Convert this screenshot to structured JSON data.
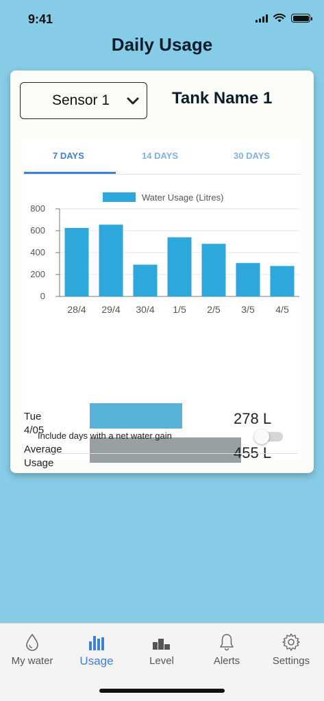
{
  "status_bar": {
    "time": "9:41"
  },
  "page_title": "Daily Usage",
  "sensor_select": {
    "value": "Sensor 1"
  },
  "tank_name": "Tank Name 1",
  "tabs": [
    {
      "label": "7 DAYS",
      "active": true
    },
    {
      "label": "14 DAYS",
      "active": false
    },
    {
      "label": "30 DAYS",
      "active": false
    }
  ],
  "chart_data": {
    "type": "bar",
    "legend": "Water Usage (Litres)",
    "categories": [
      "28/4",
      "29/4",
      "30/4",
      "1/5",
      "2/5",
      "3/5",
      "4/5"
    ],
    "values": [
      625,
      655,
      290,
      540,
      480,
      305,
      278
    ],
    "yticks": [
      "0",
      "200",
      "400",
      "600",
      "800"
    ],
    "ylim": [
      0,
      800
    ],
    "color": "#2ea7db",
    "grid": true
  },
  "comparison": {
    "today_label_line1": "Tue",
    "today_label_line2": "4/05",
    "today_value": "278 L",
    "today_litres": 278,
    "avg_label_line1": "Average",
    "avg_label_line2": "Usage",
    "avg_value": "455 L",
    "avg_litres": 455
  },
  "net_gain_toggle": {
    "label": "Include days with a net water gain",
    "on": false
  },
  "bottom_nav": [
    {
      "label": "My water",
      "icon": "water-drop-icon",
      "active": false
    },
    {
      "label": "Usage",
      "icon": "bar-chart-icon",
      "active": true
    },
    {
      "label": "Level",
      "icon": "level-icon",
      "active": false
    },
    {
      "label": "Alerts",
      "icon": "bell-icon",
      "active": false
    },
    {
      "label": "Settings",
      "icon": "gear-icon",
      "active": false
    }
  ],
  "colors": {
    "background": "#87cce6",
    "accent": "#3f7fd4",
    "bar": "#2ea7db",
    "today_bar": "#58b1d8",
    "avg_bar": "#98a0a4"
  }
}
